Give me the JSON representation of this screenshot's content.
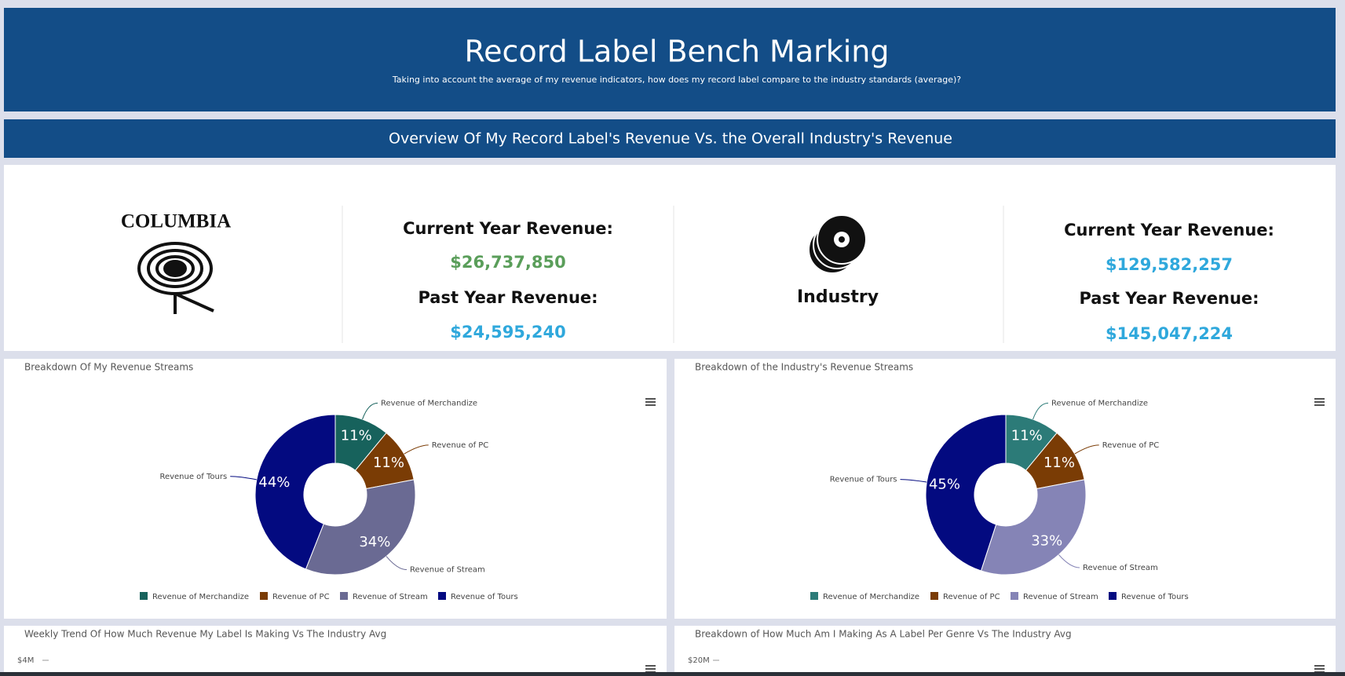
{
  "header": {
    "title": "Record Label Bench Marking",
    "subtitle": "Taking into account the average of my revenue indicators, how does my record label compare to the industry standards (average)?"
  },
  "section_title": "Overview Of My Record Label's Revenue Vs. the Overall Industry's Revenue",
  "label": {
    "logo_text": "COLUMBIA",
    "current_label": "Current Year Revenue:",
    "current_value": "$26,737,850",
    "past_label": "Past Year Revenue:",
    "past_value": "$24,595,240"
  },
  "industry": {
    "name": "Industry",
    "current_label": "Current Year Revenue:",
    "current_value": "$129,582,257",
    "past_label": "Past Year Revenue:",
    "past_value": "$145,047,224"
  },
  "chart_data": [
    {
      "type": "pie",
      "title": "Breakdown Of My Revenue Streams",
      "categories": [
        "Revenue of Merchandize",
        "Revenue of PC",
        "Revenue of Stream",
        "Revenue of Tours"
      ],
      "values": [
        11,
        11,
        34,
        44
      ],
      "value_labels": [
        "11%",
        "11%",
        "34%",
        "44%"
      ],
      "colors": [
        "#17625c",
        "#7a3c05",
        "#6a6a93",
        "#030a80"
      ]
    },
    {
      "type": "pie",
      "title": "Breakdown of the Industry's Revenue Streams",
      "categories": [
        "Revenue of Merchandize",
        "Revenue of PC",
        "Revenue of Stream",
        "Revenue of Tours"
      ],
      "values": [
        11,
        11,
        33,
        45
      ],
      "value_labels": [
        "11%",
        "11%",
        "33%",
        "45%"
      ],
      "colors": [
        "#2c7b78",
        "#7a3c05",
        "#8584b6",
        "#030a80"
      ]
    },
    {
      "type": "line",
      "title": "Weekly Trend Of How Much Revenue My Label Is Making Vs The Industry Avg",
      "yticks": [
        {
          "value": 4000000,
          "label": "$4M"
        }
      ]
    },
    {
      "type": "bar",
      "title": "Breakdown of How Much Am I Making As A Label Per Genre Vs The Industry Avg",
      "yticks": [
        {
          "value": 20000000,
          "label": "$20M"
        }
      ]
    }
  ]
}
